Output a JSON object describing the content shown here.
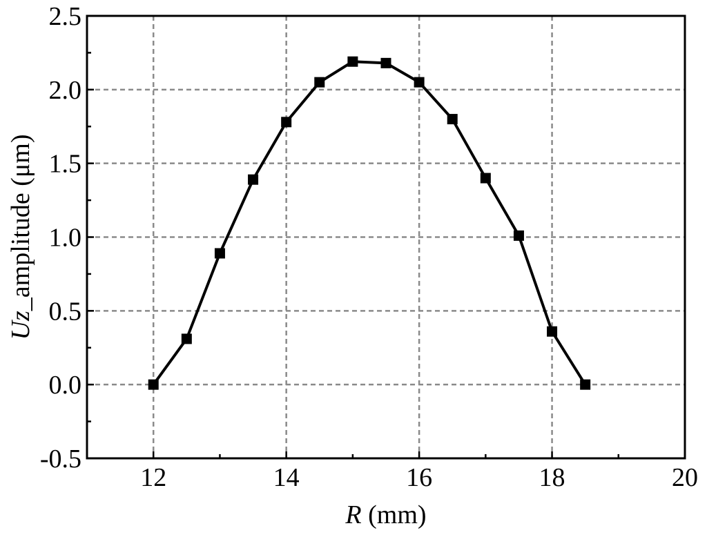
{
  "chart_data": {
    "type": "line",
    "xlabel": {
      "italic": "R",
      "rest": " (mm)"
    },
    "ylabel": {
      "italic": "Uz",
      "rest": "_amplitude (μm)"
    },
    "xlim": [
      11,
      20
    ],
    "ylim": [
      -0.5,
      2.5
    ],
    "x_ticks": [
      12,
      14,
      16,
      18,
      20
    ],
    "x_tick_labels": [
      "12",
      "14",
      "16",
      "18",
      "20"
    ],
    "y_ticks": [
      -0.5,
      0.0,
      0.5,
      1.0,
      1.5,
      2.0,
      2.5
    ],
    "y_tick_labels": [
      "-0.5",
      "0.0",
      "0.5",
      "1.0",
      "1.5",
      "2.0",
      "2.5"
    ],
    "grid": true,
    "legend": "none",
    "series": [
      {
        "x": [
          12,
          12.5,
          13,
          13.5,
          14,
          14.5,
          15,
          15.5,
          16,
          16.5,
          17,
          17.5,
          18,
          18.5
        ],
        "y": [
          0.0,
          0.31,
          0.89,
          1.39,
          1.78,
          2.05,
          2.19,
          2.18,
          2.05,
          1.8,
          1.4,
          1.01,
          0.36,
          0.0
        ],
        "color": "#000000",
        "marker": "square"
      }
    ]
  }
}
